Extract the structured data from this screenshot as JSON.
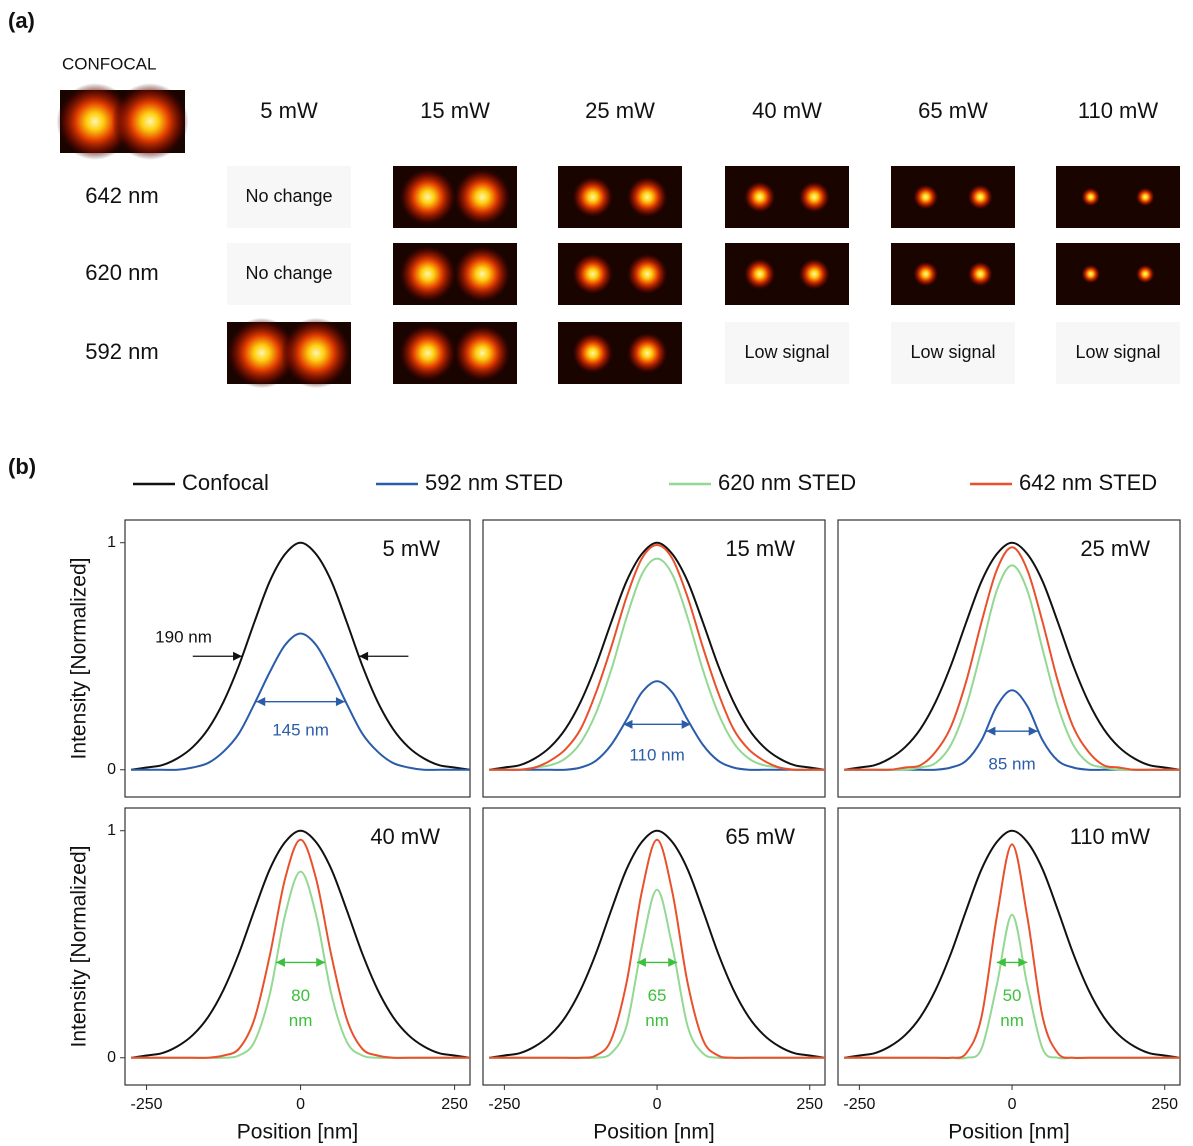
{
  "panel_a": {
    "label": "(a)",
    "confocal_label": "CONFOCAL",
    "columns": [
      "5 mW",
      "15 mW",
      "25 mW",
      "40 mW",
      "65 mW",
      "110 mW"
    ],
    "rows": [
      {
        "label": "642 nm",
        "cells": [
          "No change",
          null,
          null,
          null,
          null,
          null
        ]
      },
      {
        "label": "620 nm",
        "cells": [
          "No change",
          null,
          null,
          null,
          null,
          null
        ]
      },
      {
        "label": "592 nm",
        "cells": [
          null,
          null,
          null,
          "Low signal",
          "Low signal",
          "Low signal"
        ]
      }
    ]
  },
  "panel_b_label": "(b)",
  "chart_data": [
    {
      "type": "line",
      "title": "5 mW",
      "ylabel": "Intensity [Normalized]",
      "x": [
        -275,
        -250,
        -225,
        -200,
        -175,
        -150,
        -125,
        -100,
        -75,
        -50,
        -25,
        0,
        25,
        50,
        75,
        100,
        125,
        150,
        175,
        200,
        225,
        250,
        275
      ],
      "xlim": [
        -285,
        275
      ],
      "ylim": [
        -0.12,
        1.1
      ],
      "yticks": [
        0,
        1
      ],
      "series": [
        {
          "name": "Confocal",
          "color": "#111111",
          "values": [
            0,
            0.01,
            0.02,
            0.05,
            0.1,
            0.18,
            0.3,
            0.46,
            0.65,
            0.83,
            0.95,
            1,
            0.95,
            0.83,
            0.65,
            0.46,
            0.3,
            0.18,
            0.1,
            0.05,
            0.02,
            0.01,
            0
          ]
        },
        {
          "name": "592 nm STED",
          "color": "#2a5caa",
          "values": [
            0,
            0,
            0,
            0,
            0.01,
            0.03,
            0.08,
            0.16,
            0.29,
            0.43,
            0.55,
            0.6,
            0.55,
            0.43,
            0.29,
            0.16,
            0.08,
            0.03,
            0.01,
            0,
            0,
            0,
            0
          ]
        }
      ],
      "annotations": [
        {
          "text": [
            "190 nm"
          ],
          "color": "#111111"
        },
        {
          "text": [
            "145 nm"
          ],
          "color": "#2a5caa"
        }
      ]
    },
    {
      "type": "line",
      "title": "15 mW",
      "x": [
        -275,
        -250,
        -225,
        -200,
        -175,
        -150,
        -125,
        -100,
        -75,
        -50,
        -25,
        0,
        25,
        50,
        75,
        100,
        125,
        150,
        175,
        200,
        225,
        250,
        275
      ],
      "xlim": [
        -285,
        275
      ],
      "ylim": [
        -0.12,
        1.1
      ],
      "series": [
        {
          "name": "Confocal",
          "color": "#111111",
          "values": [
            0,
            0.01,
            0.02,
            0.05,
            0.1,
            0.18,
            0.3,
            0.46,
            0.65,
            0.83,
            0.95,
            1,
            0.95,
            0.83,
            0.65,
            0.46,
            0.3,
            0.18,
            0.1,
            0.05,
            0.02,
            0.01,
            0
          ]
        },
        {
          "name": "592 nm STED",
          "color": "#2a5caa",
          "values": [
            0,
            0,
            0,
            0,
            0,
            0,
            0.01,
            0.04,
            0.11,
            0.22,
            0.34,
            0.39,
            0.34,
            0.22,
            0.11,
            0.04,
            0.01,
            0,
            0,
            0,
            0,
            0,
            0
          ]
        },
        {
          "name": "620 nm STED",
          "color": "#93d893",
          "values": [
            0,
            0,
            0,
            0.01,
            0.02,
            0.05,
            0.12,
            0.25,
            0.44,
            0.67,
            0.86,
            0.93,
            0.86,
            0.67,
            0.44,
            0.25,
            0.12,
            0.05,
            0.02,
            0.01,
            0,
            0,
            0
          ]
        },
        {
          "name": "642 nm STED",
          "color": "#e8512b",
          "values": [
            0,
            0,
            0,
            0.01,
            0.04,
            0.09,
            0.18,
            0.34,
            0.54,
            0.76,
            0.93,
            0.99,
            0.93,
            0.76,
            0.54,
            0.34,
            0.18,
            0.09,
            0.04,
            0.01,
            0,
            0,
            0
          ]
        }
      ],
      "annotations": [
        {
          "text": [
            "110 nm"
          ],
          "color": "#2a5caa"
        }
      ]
    },
    {
      "type": "line",
      "title": "25 mW",
      "x": [
        -275,
        -250,
        -225,
        -200,
        -175,
        -150,
        -125,
        -100,
        -75,
        -50,
        -25,
        0,
        25,
        50,
        75,
        100,
        125,
        150,
        175,
        200,
        225,
        250,
        275
      ],
      "xlim": [
        -285,
        275
      ],
      "ylim": [
        -0.12,
        1.1
      ],
      "series": [
        {
          "name": "Confocal",
          "color": "#111111",
          "values": [
            0,
            0.01,
            0.02,
            0.05,
            0.1,
            0.18,
            0.3,
            0.46,
            0.65,
            0.83,
            0.95,
            1,
            0.95,
            0.83,
            0.65,
            0.46,
            0.3,
            0.18,
            0.1,
            0.05,
            0.02,
            0.01,
            0
          ]
        },
        {
          "name": "592 nm STED",
          "color": "#2a5caa",
          "values": [
            0,
            0,
            0,
            0,
            0,
            0,
            0,
            0.01,
            0.04,
            0.13,
            0.28,
            0.35,
            0.28,
            0.13,
            0.04,
            0.01,
            0,
            0,
            0,
            0,
            0,
            0,
            0
          ]
        },
        {
          "name": "620 nm STED",
          "color": "#93d893",
          "values": [
            0,
            0,
            0,
            0,
            0,
            0.01,
            0.03,
            0.11,
            0.28,
            0.53,
            0.79,
            0.9,
            0.79,
            0.53,
            0.28,
            0.11,
            0.03,
            0.01,
            0,
            0,
            0,
            0,
            0
          ]
        },
        {
          "name": "642 nm STED",
          "color": "#e8512b",
          "values": [
            0,
            0,
            0,
            0,
            0.01,
            0.02,
            0.08,
            0.19,
            0.39,
            0.65,
            0.88,
            0.98,
            0.88,
            0.65,
            0.39,
            0.19,
            0.08,
            0.02,
            0.01,
            0,
            0,
            0,
            0
          ]
        }
      ],
      "annotations": [
        {
          "text": [
            "85 nm"
          ],
          "color": "#2a5caa"
        }
      ]
    },
    {
      "type": "line",
      "title": "40 mW",
      "ylabel": "Intensity [Normalized]",
      "xlabel": "Position [nm]",
      "x": [
        -275,
        -250,
        -225,
        -200,
        -175,
        -150,
        -125,
        -100,
        -75,
        -50,
        -25,
        0,
        25,
        50,
        75,
        100,
        125,
        150,
        175,
        200,
        225,
        250,
        275
      ],
      "xlim": [
        -285,
        275
      ],
      "ylim": [
        -0.12,
        1.1
      ],
      "yticks": [
        0,
        1
      ],
      "xticks": [
        -250,
        0,
        250
      ],
      "series": [
        {
          "name": "Confocal",
          "color": "#111111",
          "values": [
            0,
            0.01,
            0.02,
            0.05,
            0.1,
            0.18,
            0.3,
            0.46,
            0.65,
            0.83,
            0.95,
            1,
            0.95,
            0.83,
            0.65,
            0.46,
            0.3,
            0.18,
            0.1,
            0.05,
            0.02,
            0.01,
            0
          ]
        },
        {
          "name": "620 nm STED",
          "color": "#93d893",
          "values": [
            0,
            0,
            0,
            0,
            0,
            0,
            0,
            0.01,
            0.07,
            0.28,
            0.63,
            0.82,
            0.63,
            0.28,
            0.07,
            0.01,
            0,
            0,
            0,
            0,
            0,
            0,
            0
          ]
        },
        {
          "name": "642 nm STED",
          "color": "#e8512b",
          "values": [
            0,
            0,
            0,
            0,
            0,
            0,
            0.01,
            0.04,
            0.17,
            0.45,
            0.79,
            0.96,
            0.79,
            0.45,
            0.17,
            0.04,
            0.01,
            0,
            0,
            0,
            0,
            0,
            0
          ]
        }
      ],
      "annotations": [
        {
          "text": [
            "80",
            "nm"
          ],
          "color": "#3cc03c"
        }
      ]
    },
    {
      "type": "line",
      "title": "65 mW",
      "xlabel": "Position [nm]",
      "x": [
        -275,
        -250,
        -225,
        -200,
        -175,
        -150,
        -125,
        -100,
        -75,
        -50,
        -25,
        0,
        25,
        50,
        75,
        100,
        125,
        150,
        175,
        200,
        225,
        250,
        275
      ],
      "xlim": [
        -285,
        275
      ],
      "ylim": [
        -0.12,
        1.1
      ],
      "xticks": [
        -250,
        0,
        250
      ],
      "series": [
        {
          "name": "Confocal",
          "color": "#111111",
          "values": [
            0,
            0.01,
            0.02,
            0.05,
            0.1,
            0.18,
            0.3,
            0.46,
            0.65,
            0.83,
            0.95,
            1,
            0.95,
            0.83,
            0.65,
            0.46,
            0.3,
            0.18,
            0.1,
            0.05,
            0.02,
            0.01,
            0
          ]
        },
        {
          "name": "620 nm STED",
          "color": "#93d893",
          "values": [
            0,
            0,
            0,
            0,
            0,
            0,
            0,
            0,
            0.02,
            0.14,
            0.49,
            0.74,
            0.49,
            0.14,
            0.02,
            0,
            0,
            0,
            0,
            0,
            0,
            0,
            0
          ]
        },
        {
          "name": "642 nm STED",
          "color": "#e8512b",
          "values": [
            0,
            0,
            0,
            0,
            0,
            0,
            0,
            0.01,
            0.08,
            0.33,
            0.73,
            0.96,
            0.73,
            0.33,
            0.08,
            0.01,
            0,
            0,
            0,
            0,
            0,
            0,
            0
          ]
        }
      ],
      "annotations": [
        {
          "text": [
            "65",
            "nm"
          ],
          "color": "#3cc03c"
        }
      ]
    },
    {
      "type": "line",
      "title": "110 mW",
      "xlabel": "Position [nm]",
      "x": [
        -275,
        -250,
        -225,
        -200,
        -175,
        -150,
        -125,
        -100,
        -75,
        -50,
        -25,
        0,
        25,
        50,
        75,
        100,
        125,
        150,
        175,
        200,
        225,
        250,
        275
      ],
      "xlim": [
        -285,
        275
      ],
      "ylim": [
        -0.12,
        1.1
      ],
      "xticks": [
        -250,
        0,
        250
      ],
      "series": [
        {
          "name": "Confocal",
          "color": "#111111",
          "values": [
            0,
            0.01,
            0.02,
            0.05,
            0.1,
            0.18,
            0.3,
            0.46,
            0.65,
            0.83,
            0.95,
            1,
            0.95,
            0.83,
            0.65,
            0.46,
            0.3,
            0.18,
            0.1,
            0.05,
            0.02,
            0.01,
            0
          ]
        },
        {
          "name": "620 nm STED",
          "color": "#93d893",
          "values": [
            0,
            0,
            0,
            0,
            0,
            0,
            0,
            0,
            0,
            0.04,
            0.32,
            0.63,
            0.32,
            0.04,
            0,
            0,
            0,
            0,
            0,
            0,
            0,
            0,
            0
          ]
        },
        {
          "name": "642 nm STED",
          "color": "#e8512b",
          "values": [
            0,
            0,
            0,
            0,
            0,
            0,
            0,
            0,
            0.02,
            0.18,
            0.62,
            0.94,
            0.62,
            0.18,
            0.02,
            0,
            0,
            0,
            0,
            0,
            0,
            0,
            0
          ]
        }
      ],
      "annotations": [
        {
          "text": [
            "50",
            "nm"
          ],
          "color": "#3cc03c"
        }
      ]
    }
  ]
}
